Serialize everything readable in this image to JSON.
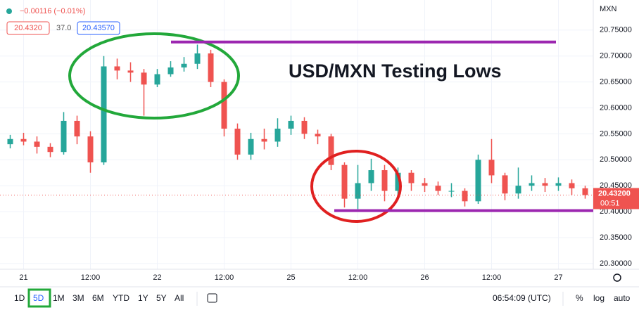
{
  "chart_data": {
    "type": "candlestick",
    "title": "USD/MXN Testing Lows",
    "currency": "MXN",
    "categories": [
      null,
      "21",
      null,
      null,
      null,
      null,
      "12:00",
      null,
      null,
      null,
      null,
      "22",
      null,
      null,
      null,
      null,
      "12:00",
      null,
      null,
      null,
      null,
      "25",
      null,
      null,
      null,
      null,
      "12:00",
      null,
      null,
      null,
      null,
      "26",
      null,
      null,
      null,
      null,
      "12:00",
      null,
      null,
      null,
      null,
      "27",
      null,
      null
    ],
    "open": [
      20.53,
      20.54,
      20.535,
      20.525,
      20.515,
      20.575,
      20.545,
      20.495,
      20.68,
      20.672,
      20.668,
      20.645,
      20.665,
      20.678,
      20.685,
      20.705,
      20.65,
      20.56,
      20.51,
      20.54,
      20.535,
      20.56,
      20.575,
      20.55,
      20.545,
      20.49,
      20.425,
      20.455,
      20.48,
      20.44,
      20.475,
      20.455,
      20.45,
      20.44,
      20.44,
      20.42,
      20.5,
      20.47,
      20.435,
      20.45,
      20.455,
      20.45,
      20.455,
      20.445
    ],
    "high": [
      20.548,
      20.552,
      20.545,
      20.532,
      20.592,
      20.585,
      20.555,
      20.7,
      20.695,
      20.688,
      20.675,
      20.675,
      20.69,
      20.698,
      20.722,
      20.712,
      20.655,
      20.57,
      20.552,
      20.56,
      20.58,
      20.585,
      20.582,
      20.558,
      20.55,
      20.495,
      20.49,
      20.502,
      20.49,
      20.485,
      20.48,
      20.465,
      20.458,
      20.455,
      20.445,
      20.51,
      20.54,
      20.475,
      20.485,
      20.47,
      20.465,
      20.466,
      20.462,
      20.45
    ],
    "low": [
      20.522,
      20.528,
      20.512,
      20.505,
      20.51,
      20.53,
      20.475,
      20.49,
      20.655,
      20.65,
      20.585,
      20.64,
      20.66,
      20.67,
      20.675,
      20.64,
      20.545,
      20.5,
      20.5,
      20.52,
      20.525,
      20.548,
      20.54,
      20.53,
      20.48,
      20.408,
      20.405,
      20.44,
      20.42,
      20.425,
      20.44,
      20.438,
      20.432,
      20.428,
      20.41,
      20.415,
      20.455,
      20.422,
      20.425,
      20.44,
      20.438,
      20.44,
      20.432,
      20.425
    ],
    "close": [
      20.54,
      20.535,
      20.525,
      20.515,
      20.575,
      20.545,
      20.495,
      20.68,
      20.672,
      20.668,
      20.645,
      20.665,
      20.678,
      20.685,
      20.705,
      20.65,
      20.56,
      20.51,
      20.54,
      20.535,
      20.56,
      20.575,
      20.55,
      20.545,
      20.49,
      20.425,
      20.455,
      20.48,
      20.44,
      20.475,
      20.455,
      20.45,
      20.44,
      20.44,
      20.42,
      20.5,
      20.47,
      20.435,
      20.45,
      20.455,
      20.45,
      20.455,
      20.445,
      20.432
    ],
    "up_color": "#26a69a",
    "down_color": "#ef5350",
    "ylim": [
      20.289,
      20.808
    ],
    "yticks": [
      {
        "value": 20.3,
        "label": "20.30000"
      },
      {
        "value": 20.35,
        "label": "20.35000"
      },
      {
        "value": 20.4,
        "label": "20.40000"
      },
      {
        "value": 20.45,
        "label": "20.45000"
      },
      {
        "value": 20.5,
        "label": "20.50000"
      },
      {
        "value": 20.55,
        "label": "20.55000"
      },
      {
        "value": 20.6,
        "label": "20.60000"
      },
      {
        "value": 20.65,
        "label": "20.65000"
      },
      {
        "value": 20.7,
        "label": "20.70000"
      },
      {
        "value": 20.75,
        "label": "20.75000"
      }
    ],
    "grid": true,
    "levels": [
      20.727,
      20.402
    ],
    "level_color": "#9c27b0",
    "last_price": {
      "value": 20.432,
      "label": "20.43200"
    },
    "countdown": "00:51"
  },
  "header": {
    "change": "−0.00116 (−0.01%)",
    "bid": "20.4320",
    "spread": "37.0",
    "ask": "20.43570"
  },
  "toolbar": {
    "ranges": [
      "1D",
      "5D",
      "1M",
      "3M",
      "6M",
      "YTD",
      "1Y",
      "5Y",
      "All"
    ],
    "time": "06:54:09 (UTC)",
    "percent": "%",
    "log": "log",
    "auto": "auto"
  }
}
